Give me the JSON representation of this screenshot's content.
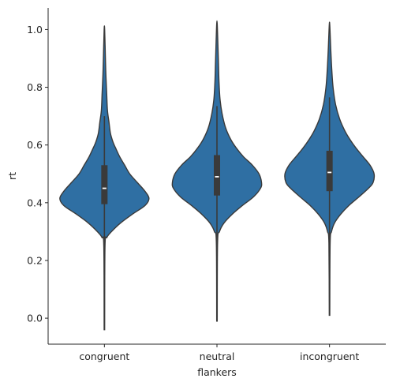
{
  "chart_data": {
    "type": "violin",
    "xlabel": "flankers",
    "ylabel": "rt",
    "categories": [
      "congruent",
      "neutral",
      "incongruent"
    ],
    "ylim": [
      -0.09,
      1.075
    ],
    "yticks": [
      0.0,
      0.2,
      0.4,
      0.6,
      0.8,
      1.0
    ],
    "ytick_labels": [
      "0.0",
      "0.2",
      "0.4",
      "0.6",
      "0.8",
      "1.0"
    ],
    "fill_color": "#2f6fa3",
    "line_color": "#3a3a3a",
    "violins": [
      {
        "category": "congruent",
        "min": -0.04,
        "max": 1.0,
        "whisker_low": 0.235,
        "whisker_high": 0.7,
        "q1": 0.395,
        "median": 0.45,
        "q3": 0.53,
        "density": [
          [
            -0.04,
            0.005
          ],
          [
            0.25,
            0.012
          ],
          [
            0.28,
            0.05
          ],
          [
            0.3,
            0.14
          ],
          [
            0.33,
            0.32
          ],
          [
            0.36,
            0.55
          ],
          [
            0.39,
            0.8
          ],
          [
            0.415,
            0.88
          ],
          [
            0.44,
            0.8
          ],
          [
            0.47,
            0.65
          ],
          [
            0.5,
            0.5
          ],
          [
            0.53,
            0.4
          ],
          [
            0.56,
            0.3
          ],
          [
            0.59,
            0.22
          ],
          [
            0.61,
            0.17
          ],
          [
            0.64,
            0.12
          ],
          [
            0.68,
            0.09
          ],
          [
            0.72,
            0.06
          ],
          [
            0.78,
            0.045
          ],
          [
            0.84,
            0.03
          ],
          [
            0.9,
            0.02
          ],
          [
            1.0,
            0.005
          ]
        ]
      },
      {
        "category": "neutral",
        "min": -0.01,
        "max": 1.02,
        "whisker_low": 0.255,
        "whisker_high": 0.735,
        "q1": 0.425,
        "median": 0.49,
        "q3": 0.565,
        "density": [
          [
            -0.01,
            0.005
          ],
          [
            0.26,
            0.012
          ],
          [
            0.3,
            0.05
          ],
          [
            0.33,
            0.14
          ],
          [
            0.36,
            0.3
          ],
          [
            0.39,
            0.5
          ],
          [
            0.42,
            0.72
          ],
          [
            0.45,
            0.86
          ],
          [
            0.47,
            0.88
          ],
          [
            0.5,
            0.83
          ],
          [
            0.53,
            0.7
          ],
          [
            0.56,
            0.52
          ],
          [
            0.59,
            0.38
          ],
          [
            0.62,
            0.27
          ],
          [
            0.66,
            0.17
          ],
          [
            0.71,
            0.1
          ],
          [
            0.76,
            0.06
          ],
          [
            0.82,
            0.04
          ],
          [
            0.88,
            0.03
          ],
          [
            0.94,
            0.02
          ],
          [
            1.02,
            0.005
          ]
        ]
      },
      {
        "category": "incongruent",
        "min": 0.01,
        "max": 1.015,
        "whisker_low": 0.255,
        "whisker_high": 0.765,
        "q1": 0.44,
        "median": 0.505,
        "q3": 0.58,
        "density": [
          [
            0.01,
            0.005
          ],
          [
            0.26,
            0.012
          ],
          [
            0.3,
            0.04
          ],
          [
            0.33,
            0.1
          ],
          [
            0.36,
            0.22
          ],
          [
            0.39,
            0.38
          ],
          [
            0.42,
            0.58
          ],
          [
            0.45,
            0.77
          ],
          [
            0.47,
            0.86
          ],
          [
            0.5,
            0.88
          ],
          [
            0.53,
            0.8
          ],
          [
            0.56,
            0.66
          ],
          [
            0.59,
            0.52
          ],
          [
            0.62,
            0.4
          ],
          [
            0.65,
            0.3
          ],
          [
            0.69,
            0.2
          ],
          [
            0.74,
            0.12
          ],
          [
            0.8,
            0.07
          ],
          [
            0.86,
            0.045
          ],
          [
            0.93,
            0.025
          ],
          [
            1.015,
            0.005
          ]
        ]
      }
    ]
  }
}
